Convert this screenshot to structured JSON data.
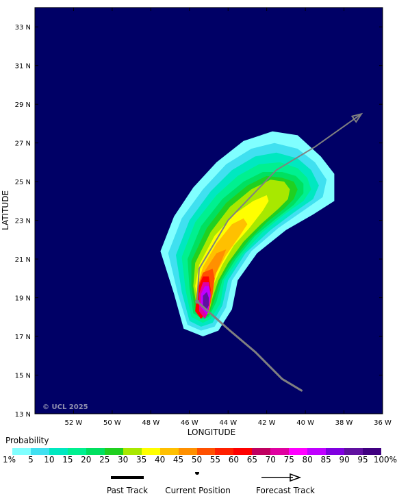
{
  "map": {
    "background_color": "#000066",
    "copyright": "© UCL 2025",
    "x_axis_title": "LONGITUDE",
    "y_axis_title": "LATITUDE",
    "lon_range": [
      -54,
      -36
    ],
    "lat_range": [
      13,
      34
    ],
    "lon_ticks": [
      {
        "value": -52,
        "label": "52 W"
      },
      {
        "value": -50,
        "label": "50 W"
      },
      {
        "value": -48,
        "label": "48 W"
      },
      {
        "value": -46,
        "label": "46 W"
      },
      {
        "value": -44,
        "label": "44 W"
      },
      {
        "value": -42,
        "label": "42 W"
      },
      {
        "value": -40,
        "label": "40 W"
      },
      {
        "value": -38,
        "label": "38 W"
      },
      {
        "value": -36,
        "label": "36 W"
      }
    ],
    "lat_ticks": [
      {
        "value": 13,
        "label": "13 N"
      },
      {
        "value": 15,
        "label": "15 N"
      },
      {
        "value": 17,
        "label": "17 N"
      },
      {
        "value": 19,
        "label": "19 N"
      },
      {
        "value": 21,
        "label": "21 N"
      },
      {
        "value": 23,
        "label": "23 N"
      },
      {
        "value": 25,
        "label": "25 N"
      },
      {
        "value": 27,
        "label": "27 N"
      },
      {
        "value": 29,
        "label": "29 N"
      },
      {
        "value": 31,
        "label": "31 N"
      },
      {
        "value": 33,
        "label": "33 N"
      }
    ]
  },
  "past_track": [
    [
      -40.2,
      14.2
    ],
    [
      -41.2,
      14.8
    ],
    [
      -42.6,
      16.2
    ],
    [
      -43.9,
      17.3
    ],
    [
      -45.6,
      18.8
    ]
  ],
  "forecast_track": [
    [
      -45.6,
      18.8
    ],
    [
      -45.5,
      20.5
    ],
    [
      -44.0,
      23.0
    ],
    [
      -41.5,
      25.6
    ],
    [
      -39.5,
      26.8
    ],
    [
      -37.1,
      28.5
    ]
  ],
  "current_position": [
    -45.6,
    18.8
  ],
  "probability_layers": [
    {
      "level": 1,
      "color": "#80ffff",
      "poly": [
        [
          -45.3,
          17.0
        ],
        [
          -46.3,
          17.4
        ],
        [
          -46.8,
          19.2
        ],
        [
          -47.5,
          21.4
        ],
        [
          -46.8,
          23.2
        ],
        [
          -45.8,
          24.7
        ],
        [
          -44.6,
          26.0
        ],
        [
          -43.2,
          27.1
        ],
        [
          -41.7,
          27.6
        ],
        [
          -40.4,
          27.4
        ],
        [
          -39.2,
          26.3
        ],
        [
          -38.5,
          25.4
        ],
        [
          -38.5,
          24.0
        ],
        [
          -39.6,
          23.3
        ],
        [
          -41.0,
          22.5
        ],
        [
          -42.5,
          21.3
        ],
        [
          -43.5,
          19.9
        ],
        [
          -43.8,
          18.4
        ],
        [
          -44.5,
          17.3
        ]
      ]
    },
    {
      "level": 5,
      "color": "#40e0f0",
      "poly": [
        [
          -45.4,
          17.3
        ],
        [
          -46.1,
          17.6
        ],
        [
          -46.6,
          19.2
        ],
        [
          -47.1,
          21.3
        ],
        [
          -46.4,
          23.1
        ],
        [
          -45.3,
          24.6
        ],
        [
          -44.1,
          25.9
        ],
        [
          -42.8,
          26.7
        ],
        [
          -41.6,
          27.0
        ],
        [
          -40.4,
          26.7
        ],
        [
          -39.5,
          26.0
        ],
        [
          -38.9,
          25.1
        ],
        [
          -39.1,
          24.2
        ],
        [
          -40.1,
          23.5
        ],
        [
          -41.4,
          22.6
        ],
        [
          -42.8,
          21.4
        ],
        [
          -43.8,
          19.9
        ],
        [
          -44.1,
          18.5
        ],
        [
          -44.7,
          17.5
        ]
      ]
    },
    {
      "level": 10,
      "color": "#00e8c0",
      "poly": [
        [
          -45.4,
          17.5
        ],
        [
          -46.0,
          17.8
        ],
        [
          -46.4,
          19.3
        ],
        [
          -46.7,
          21.2
        ],
        [
          -46.0,
          23.0
        ],
        [
          -44.9,
          24.5
        ],
        [
          -43.8,
          25.6
        ],
        [
          -42.6,
          26.3
        ],
        [
          -41.5,
          26.5
        ],
        [
          -40.4,
          26.2
        ],
        [
          -39.7,
          25.6
        ],
        [
          -39.3,
          24.8
        ],
        [
          -39.6,
          24.1
        ],
        [
          -40.6,
          23.4
        ],
        [
          -41.8,
          22.5
        ],
        [
          -43.1,
          21.3
        ],
        [
          -44.0,
          19.9
        ],
        [
          -44.3,
          18.6
        ],
        [
          -44.8,
          17.7
        ]
      ]
    },
    {
      "level": 15,
      "color": "#00f090",
      "poly": [
        [
          -45.3,
          17.7
        ],
        [
          -45.9,
          18.0
        ],
        [
          -46.2,
          19.4
        ],
        [
          -46.4,
          21.1
        ],
        [
          -45.7,
          22.9
        ],
        [
          -44.6,
          24.3
        ],
        [
          -43.5,
          25.3
        ],
        [
          -42.4,
          25.9
        ],
        [
          -41.3,
          26.0
        ],
        [
          -40.4,
          25.7
        ],
        [
          -39.9,
          25.2
        ],
        [
          -39.7,
          24.6
        ],
        [
          -40.1,
          24.0
        ],
        [
          -41.1,
          23.3
        ],
        [
          -42.2,
          22.4
        ],
        [
          -43.3,
          21.2
        ],
        [
          -44.2,
          19.9
        ],
        [
          -44.4,
          18.7
        ],
        [
          -44.9,
          17.9
        ]
      ]
    },
    {
      "level": 20,
      "color": "#00e060",
      "poly": [
        [
          -45.3,
          17.9
        ],
        [
          -45.8,
          18.2
        ],
        [
          -46.0,
          19.5
        ],
        [
          -46.1,
          21.0
        ],
        [
          -45.4,
          22.7
        ],
        [
          -44.3,
          24.1
        ],
        [
          -43.2,
          25.0
        ],
        [
          -42.2,
          25.5
        ],
        [
          -41.2,
          25.5
        ],
        [
          -40.5,
          25.3
        ],
        [
          -40.1,
          24.9
        ],
        [
          -40.1,
          24.4
        ],
        [
          -40.6,
          23.8
        ],
        [
          -41.5,
          23.1
        ],
        [
          -42.6,
          22.2
        ],
        [
          -43.6,
          21.0
        ],
        [
          -44.3,
          19.9
        ],
        [
          -44.6,
          18.8
        ],
        [
          -45.0,
          18.0
        ]
      ]
    },
    {
      "level": 25,
      "color": "#20d020",
      "poly": [
        [
          -45.2,
          18.0
        ],
        [
          -45.7,
          18.3
        ],
        [
          -45.9,
          19.6
        ],
        [
          -45.9,
          20.9
        ],
        [
          -45.1,
          22.6
        ],
        [
          -44.1,
          23.9
        ],
        [
          -43.0,
          24.8
        ],
        [
          -42.0,
          25.3
        ],
        [
          -41.2,
          25.2
        ],
        [
          -40.6,
          25.0
        ],
        [
          -40.4,
          24.6
        ],
        [
          -40.6,
          24.1
        ],
        [
          -41.1,
          23.6
        ],
        [
          -42.0,
          22.9
        ],
        [
          -42.9,
          22.0
        ],
        [
          -43.8,
          20.9
        ],
        [
          -44.4,
          19.9
        ],
        [
          -44.7,
          18.9
        ],
        [
          -45.0,
          18.1
        ]
      ]
    },
    {
      "level": 30,
      "color": "#a8e800",
      "poly": [
        [
          -45.2,
          18.1
        ],
        [
          -45.6,
          18.4
        ],
        [
          -45.8,
          19.6
        ],
        [
          -45.7,
          20.8
        ],
        [
          -44.9,
          22.4
        ],
        [
          -43.9,
          23.7
        ],
        [
          -42.8,
          24.6
        ],
        [
          -41.8,
          25.1
        ],
        [
          -41.1,
          25.0
        ],
        [
          -40.8,
          24.6
        ],
        [
          -40.9,
          24.1
        ],
        [
          -41.4,
          23.6
        ],
        [
          -42.3,
          22.8
        ],
        [
          -43.2,
          21.9
        ],
        [
          -44.0,
          20.8
        ],
        [
          -44.5,
          19.9
        ],
        [
          -44.8,
          19.0
        ],
        [
          -45.0,
          18.2
        ]
      ]
    },
    {
      "level": 35,
      "color": "#ffff00",
      "poly": [
        [
          -45.2,
          18.2
        ],
        [
          -45.5,
          18.5
        ],
        [
          -45.7,
          19.6
        ],
        [
          -45.5,
          20.7
        ],
        [
          -44.7,
          22.2
        ],
        [
          -43.7,
          23.3
        ],
        [
          -42.7,
          24.0
        ],
        [
          -42.0,
          24.3
        ],
        [
          -41.9,
          24.0
        ],
        [
          -42.2,
          23.5
        ],
        [
          -42.9,
          22.6
        ],
        [
          -43.7,
          21.7
        ],
        [
          -44.3,
          20.7
        ],
        [
          -44.7,
          19.8
        ],
        [
          -44.9,
          19.0
        ],
        [
          -45.0,
          18.3
        ]
      ]
    },
    {
      "level": 40,
      "color": "#ffc000",
      "poly": [
        [
          -45.2,
          18.2
        ],
        [
          -45.5,
          18.5
        ],
        [
          -45.6,
          19.6
        ],
        [
          -45.3,
          20.6
        ],
        [
          -44.6,
          21.8
        ],
        [
          -43.8,
          22.8
        ],
        [
          -43.2,
          23.1
        ],
        [
          -43.0,
          22.8
        ],
        [
          -43.4,
          22.2
        ],
        [
          -44.1,
          21.2
        ],
        [
          -44.6,
          20.3
        ],
        [
          -44.8,
          19.5
        ],
        [
          -44.9,
          18.9
        ],
        [
          -45.0,
          18.3
        ]
      ]
    },
    {
      "level": 45,
      "color": "#ff9000",
      "poly": [
        [
          -45.2,
          18.2
        ],
        [
          -45.5,
          18.5
        ],
        [
          -45.5,
          19.6
        ],
        [
          -45.2,
          20.4
        ],
        [
          -44.6,
          21.3
        ],
        [
          -44.1,
          21.5
        ],
        [
          -44.3,
          21.0
        ],
        [
          -44.7,
          20.1
        ],
        [
          -44.9,
          19.3
        ],
        [
          -45.0,
          18.3
        ]
      ]
    },
    {
      "level": 50,
      "color": "#ff5000",
      "poly": [
        [
          -45.3,
          18.0
        ],
        [
          -45.6,
          18.3
        ],
        [
          -45.6,
          19.5
        ],
        [
          -45.3,
          20.3
        ],
        [
          -44.8,
          20.5
        ],
        [
          -44.7,
          20.0
        ],
        [
          -44.8,
          19.2
        ],
        [
          -45.0,
          18.3
        ]
      ]
    },
    {
      "level": 60,
      "color": "#ff0000",
      "poly": [
        [
          -45.4,
          17.9
        ],
        [
          -45.7,
          18.3
        ],
        [
          -45.6,
          19.4
        ],
        [
          -45.3,
          20.1
        ],
        [
          -45.0,
          20.1
        ],
        [
          -44.9,
          19.4
        ],
        [
          -45.0,
          18.4
        ]
      ]
    },
    {
      "level": 70,
      "color": "#e000a0",
      "poly": [
        [
          -45.2,
          17.9
        ],
        [
          -45.5,
          18.3
        ],
        [
          -45.5,
          19.2
        ],
        [
          -45.3,
          19.8
        ],
        [
          -45.0,
          19.8
        ],
        [
          -44.9,
          19.2
        ],
        [
          -45.0,
          18.3
        ]
      ]
    },
    {
      "level": 80,
      "color": "#c000ff",
      "poly": [
        [
          -45.1,
          18.1
        ],
        [
          -45.4,
          18.5
        ],
        [
          -45.4,
          19.2
        ],
        [
          -45.2,
          19.6
        ],
        [
          -45.0,
          19.6
        ],
        [
          -44.9,
          19.1
        ],
        [
          -45.0,
          18.5
        ]
      ]
    },
    {
      "level": 90,
      "color": "#6010a0",
      "poly": [
        [
          -45.1,
          18.4
        ],
        [
          -45.3,
          18.6
        ],
        [
          -45.3,
          19.1
        ],
        [
          -45.1,
          19.3
        ],
        [
          -45.0,
          19.0
        ],
        [
          -45.0,
          18.6
        ]
      ]
    }
  ],
  "legend": {
    "title": "Probability",
    "colors": [
      "#80ffff",
      "#40e0f0",
      "#00e8c0",
      "#00f090",
      "#00e060",
      "#20d020",
      "#a8e800",
      "#ffff00",
      "#ffc000",
      "#ff9000",
      "#ff5000",
      "#ff2000",
      "#ff0000",
      "#c00060",
      "#e000a0",
      "#ff00ff",
      "#c000ff",
      "#8000e0",
      "#6010a0",
      "#400080"
    ],
    "labels": [
      "1%",
      "5",
      "10",
      "15",
      "20",
      "25",
      "30",
      "35",
      "40",
      "45",
      "50",
      "55",
      "60",
      "65",
      "70",
      "75",
      "80",
      "85",
      "90",
      "95",
      "100%"
    ],
    "past_track_label": "Past Track",
    "current_position_label": "Current Position",
    "forecast_track_label": "Forecast Track"
  }
}
